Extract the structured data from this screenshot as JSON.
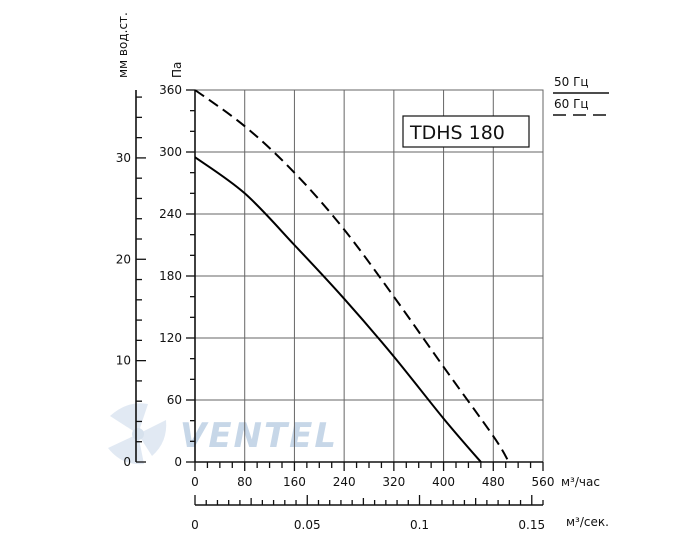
{
  "chart_data": {
    "type": "line",
    "title": "TDHS 180",
    "x_axis": {
      "label": "м³/час",
      "range": [
        0,
        560
      ],
      "major_ticks": [
        0,
        80,
        160,
        240,
        320,
        400,
        480,
        560
      ],
      "minor_step": 20
    },
    "x2_axis": {
      "label": "м³/сек.",
      "range": [
        0,
        0.155
      ],
      "ticks": [
        0,
        0.05,
        0.1,
        0.15
      ],
      "tick_labels": [
        "0",
        "0.05",
        "0.1",
        "0.15"
      ]
    },
    "y_axis": {
      "label": "Па",
      "range": [
        0,
        360
      ],
      "ticks": [
        0,
        60,
        120,
        180,
        240,
        300,
        360
      ],
      "minor_step": 20
    },
    "y2_axis": {
      "label": "мм вод.ст.",
      "range": [
        0,
        36.7
      ],
      "ticks": [
        0,
        10,
        20,
        30
      ],
      "minor_step": 2
    },
    "grid": true,
    "legend": {
      "position": "top-right"
    },
    "series": [
      {
        "name": "50 Гц",
        "style": "solid",
        "color": "#000000",
        "x": [
          0,
          80,
          160,
          240,
          320,
          400,
          460
        ],
        "y": [
          295,
          260,
          210,
          158,
          102,
          42,
          0
        ]
      },
      {
        "name": "60 Гц",
        "style": "dashed",
        "color": "#000000",
        "x": [
          0,
          80,
          160,
          240,
          320,
          400,
          480,
          505
        ],
        "y": [
          360,
          325,
          280,
          225,
          160,
          92,
          25,
          0
        ]
      }
    ]
  },
  "watermark": {
    "text": "VENTEL",
    "color": "#9bb8d6"
  }
}
